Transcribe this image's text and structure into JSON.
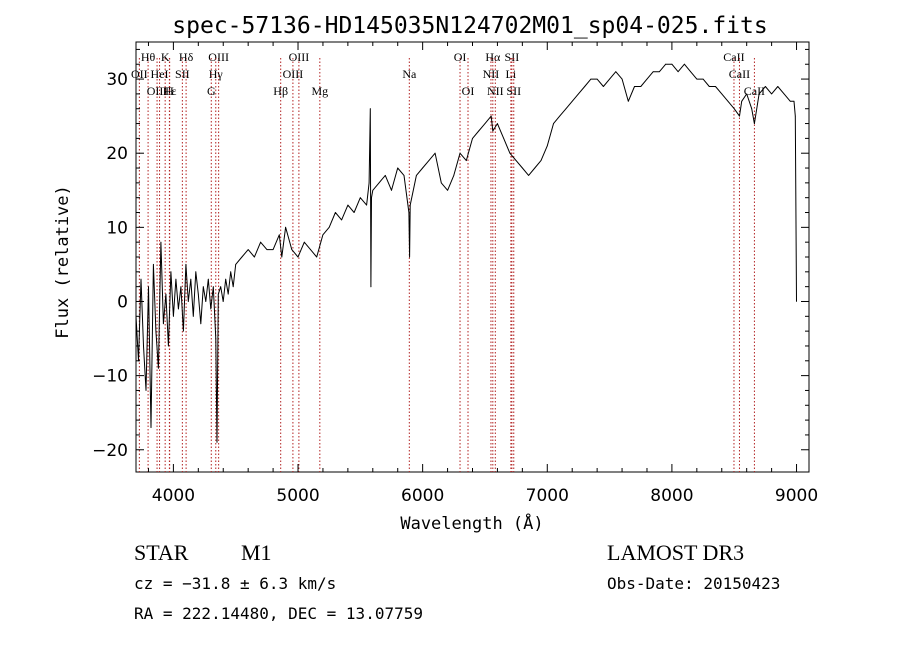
{
  "chart_data": {
    "type": "line",
    "title": "spec-57136-HD145035N124702M01_sp04-025.fits",
    "xlabel": "Wavelength (Å)",
    "ylabel": "Flux (relative)",
    "xlim": [
      3700,
      9100
    ],
    "ylim": [
      -23,
      35
    ],
    "xticks": [
      4000,
      5000,
      6000,
      7000,
      8000,
      9000
    ],
    "yticks": [
      -20,
      -10,
      0,
      10,
      20,
      30
    ],
    "xtick_labels": [
      "4000",
      "5000",
      "6000",
      "7000",
      "8000",
      "9000"
    ],
    "ytick_labels": [
      "−20",
      "−10",
      "0",
      "10",
      "20",
      "30"
    ],
    "grid": false,
    "series": [
      {
        "color": "#000000",
        "x": [
          3700,
          3720,
          3740,
          3760,
          3780,
          3800,
          3820,
          3840,
          3860,
          3880,
          3900,
          3920,
          3940,
          3960,
          3980,
          4000,
          4020,
          4040,
          4060,
          4080,
          4100,
          4120,
          4140,
          4160,
          4180,
          4200,
          4220,
          4240,
          4260,
          4280,
          4300,
          4320,
          4340,
          4350,
          4360,
          4380,
          4400,
          4420,
          4440,
          4460,
          4480,
          4500,
          4550,
          4600,
          4650,
          4700,
          4750,
          4800,
          4850,
          4870,
          4900,
          4950,
          5000,
          5050,
          5100,
          5150,
          5200,
          5250,
          5300,
          5350,
          5400,
          5450,
          5500,
          5550,
          5570,
          5580,
          5585,
          5590,
          5600,
          5650,
          5700,
          5750,
          5800,
          5850,
          5890,
          5895,
          5900,
          5950,
          6000,
          6050,
          6100,
          6150,
          6200,
          6250,
          6300,
          6350,
          6400,
          6450,
          6500,
          6550,
          6563,
          6600,
          6650,
          6700,
          6750,
          6800,
          6850,
          6900,
          6950,
          7000,
          7050,
          7100,
          7150,
          7200,
          7250,
          7300,
          7350,
          7400,
          7450,
          7500,
          7550,
          7600,
          7650,
          7700,
          7750,
          7800,
          7850,
          7900,
          7950,
          8000,
          8050,
          8100,
          8150,
          8200,
          8250,
          8300,
          8350,
          8400,
          8450,
          8500,
          8542,
          8560,
          8600,
          8640,
          8662,
          8700,
          8750,
          8800,
          8850,
          8900,
          8950,
          8980,
          8990,
          9000
        ],
        "y": [
          -2,
          -8,
          3,
          -6,
          -12,
          2,
          -17,
          5,
          -4,
          -9,
          8,
          -3,
          1,
          -6,
          4,
          -2,
          3,
          -1,
          2,
          -4,
          5,
          0,
          3,
          -2,
          4,
          1,
          -3,
          2,
          0,
          3,
          -1,
          2,
          -5,
          -19,
          1,
          2,
          0,
          3,
          1,
          4,
          2,
          5,
          6,
          7,
          6,
          8,
          7,
          7,
          9,
          6,
          10,
          7,
          6,
          8,
          7,
          6,
          9,
          10,
          12,
          11,
          13,
          12,
          14,
          13,
          16,
          26,
          2,
          14,
          15,
          16,
          17,
          15,
          18,
          17,
          12,
          6,
          13,
          17,
          18,
          19,
          20,
          16,
          15,
          17,
          20,
          19,
          22,
          23,
          24,
          25,
          23,
          24,
          22,
          20,
          19,
          18,
          17,
          18,
          19,
          21,
          24,
          25,
          26,
          27,
          28,
          29,
          30,
          30,
          29,
          30,
          31,
          30,
          27,
          29,
          29,
          30,
          31,
          31,
          32,
          32,
          31,
          32,
          31,
          30,
          30,
          29,
          29,
          28,
          27,
          26,
          25,
          27,
          28,
          26,
          24,
          28,
          29,
          28,
          29,
          28,
          27,
          27,
          25,
          0
        ]
      }
    ],
    "line_markers": [
      {
        "label": "Hθ",
        "x": 3797,
        "row": 0
      },
      {
        "label": "OII",
        "x": 3727,
        "row": 1
      },
      {
        "label": "OIII",
        "x": 3869,
        "row": 2
      },
      {
        "label": "HeI",
        "x": 3889,
        "row": 1
      },
      {
        "label": "K",
        "x": 3934,
        "row": 0
      },
      {
        "label": "Hε",
        "x": 3970,
        "row": 2
      },
      {
        "label": "H",
        "x": 3968,
        "row": 2
      },
      {
        "label": "SII",
        "x": 4072,
        "row": 1
      },
      {
        "label": "Hδ",
        "x": 4102,
        "row": 0
      },
      {
        "label": "OIII",
        "x": 4363,
        "row": 0
      },
      {
        "label": "Hγ",
        "x": 4340,
        "row": 1
      },
      {
        "label": "G",
        "x": 4304,
        "row": 2
      },
      {
        "label": "Hβ",
        "x": 4861,
        "row": 2
      },
      {
        "label": "OIII",
        "x": 4959,
        "row": 1
      },
      {
        "label": "OIII",
        "x": 5007,
        "row": 0
      },
      {
        "label": "Mg",
        "x": 5175,
        "row": 2
      },
      {
        "label": "Na",
        "x": 5893,
        "row": 1
      },
      {
        "label": "OI",
        "x": 6300,
        "row": 0
      },
      {
        "label": "OI",
        "x": 6364,
        "row": 2
      },
      {
        "label": "Hα",
        "x": 6563,
        "row": 0
      },
      {
        "label": "NII",
        "x": 6548,
        "row": 1
      },
      {
        "label": "NII",
        "x": 6583,
        "row": 2
      },
      {
        "label": "SII",
        "x": 6716,
        "row": 0
      },
      {
        "label": "Li",
        "x": 6708,
        "row": 1
      },
      {
        "label": "SII",
        "x": 6731,
        "row": 2
      },
      {
        "label": "CaII",
        "x": 8498,
        "row": 0
      },
      {
        "label": "CaII",
        "x": 8542,
        "row": 1
      },
      {
        "label": "CaII",
        "x": 8662,
        "row": 2
      }
    ],
    "marker_line_color": "#b22222"
  },
  "info": {
    "class_label": "STAR",
    "subclass_label": "M1",
    "survey_label": "LAMOST DR3",
    "redshift_text": "cz = −31.8 ± 6.3 km/s",
    "obsdate_text": "Obs-Date: 20150423",
    "coords_text": "RA = 222.14480, DEC =  13.07759"
  }
}
